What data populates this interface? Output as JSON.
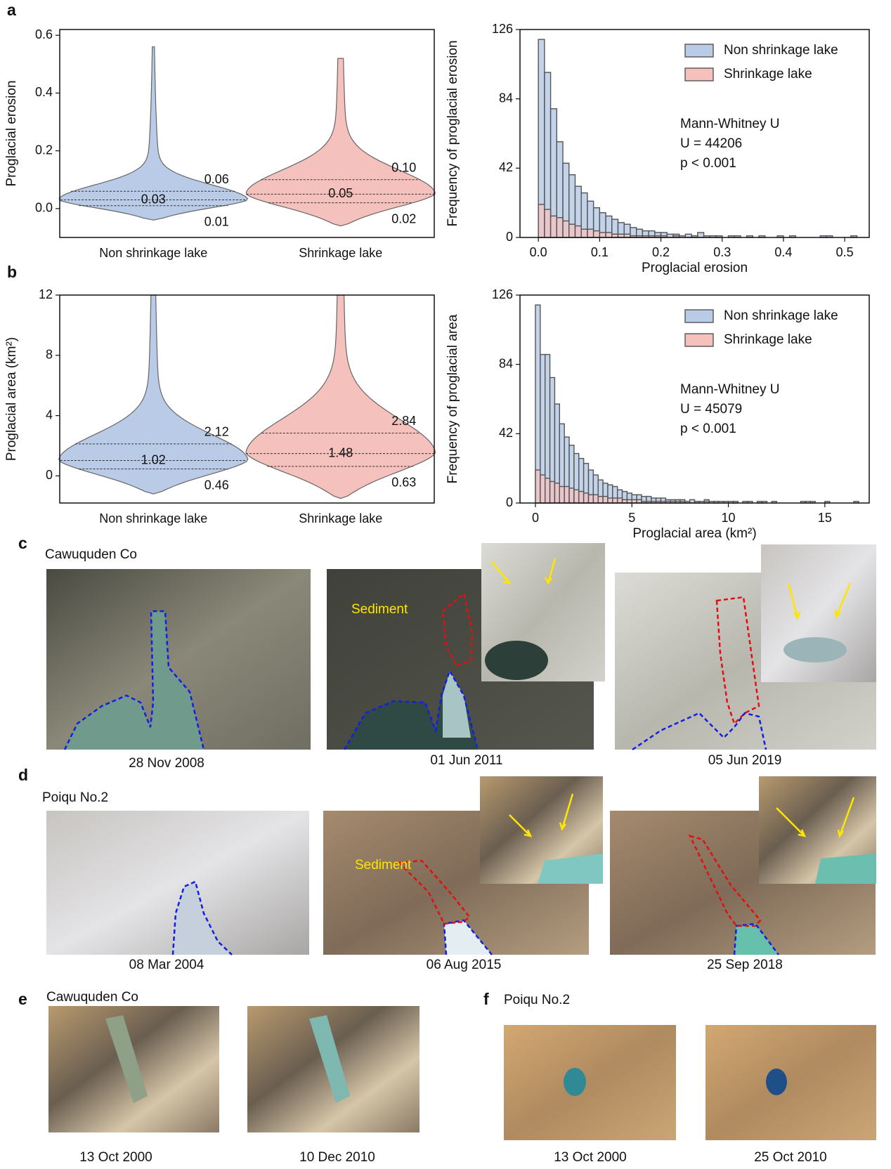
{
  "chart_data": [
    {
      "type": "violin",
      "ylabel": "Proglacial erosion",
      "categories": [
        "Non shrinkage lake",
        "Shrinkage lake"
      ],
      "colors": [
        "#b9cbe6",
        "#f5c1bd"
      ],
      "min": [
        -0.04,
        -0.06
      ],
      "max": [
        0.56,
        0.52
      ],
      "q1": [
        0.01,
        0.02
      ],
      "median": [
        0.03,
        0.05
      ],
      "q3": [
        0.06,
        0.1
      ],
      "q3_labels": [
        "0.06",
        "0.10"
      ],
      "ylim": [
        -0.1,
        0.62
      ],
      "yticks": [
        {
          "value": 0,
          "label": "0.0"
        },
        0.2,
        0.4,
        0.6
      ]
    },
    {
      "type": "histogram",
      "xlabel": "Proglacial erosion",
      "ylabel": "Frequency of proglacial erosion",
      "bins": [
        0,
        0.01,
        0.02,
        0.03,
        0.04,
        0.05,
        0.06,
        0.07,
        0.08,
        0.09,
        0.1,
        0.11,
        0.12,
        0.13,
        0.14,
        0.15,
        0.16,
        0.17,
        0.18,
        0.19,
        0.2,
        0.21,
        0.22,
        0.23,
        0.24,
        0.25,
        0.26,
        0.27,
        0.28,
        0.29,
        0.3,
        0.31,
        0.32,
        0.33,
        0.34,
        0.35,
        0.36,
        0.37,
        0.38,
        0.39,
        0.4,
        0.41,
        0.42,
        0.43,
        0.44,
        0.45,
        0.46,
        0.47,
        0.48,
        0.49,
        0.5,
        0.51,
        0.52
      ],
      "series": [
        {
          "name": "Non shrinkage lake",
          "color": "#b9cbe6",
          "values": [
            120,
            100,
            78,
            58,
            45,
            38,
            31,
            27,
            22,
            18,
            15,
            13,
            11,
            9,
            8,
            6,
            5,
            4,
            4,
            3,
            3,
            2,
            2,
            1,
            2,
            1,
            3,
            1,
            1,
            1,
            0,
            1,
            1,
            0,
            1,
            0,
            1,
            0,
            0,
            1,
            0,
            1,
            0,
            0,
            0,
            0,
            1,
            1,
            0,
            0,
            0,
            1
          ]
        },
        {
          "name": "Shrinkage lake",
          "color": "#f5c1bd",
          "values": [
            20,
            17,
            13,
            12,
            10,
            8,
            7,
            5,
            5,
            4,
            3,
            3,
            2,
            2,
            2,
            1,
            1,
            1,
            1,
            1,
            1,
            0,
            1,
            0,
            0,
            1,
            0,
            0,
            0,
            1,
            0,
            0,
            0,
            0,
            0,
            0,
            0,
            0,
            0,
            0,
            0,
            0,
            0,
            0,
            0,
            0,
            0,
            0,
            0,
            0,
            0,
            0
          ]
        }
      ],
      "xlim": [
        -0.03,
        0.54
      ],
      "xticks": [
        {
          "value": 0,
          "label": "0.0"
        },
        0.1,
        0.2,
        0.3,
        0.4,
        0.5
      ],
      "ylim": [
        0,
        126
      ],
      "yticks": [
        0,
        42,
        84,
        126
      ],
      "legend": "upper right",
      "annotations": [
        "Mann-Whitney U",
        "U = 44206",
        "p < 0.001"
      ]
    },
    {
      "type": "violin",
      "ylabel": "Proglacial area (km²)",
      "categories": [
        "Non shrinkage lake",
        "Shrinkage lake"
      ],
      "colors": [
        "#b9cbe6",
        "#f5c1bd"
      ],
      "min": [
        -1.2,
        -1.5
      ],
      "max": [
        12,
        12
      ],
      "q1": [
        0.46,
        0.63
      ],
      "median": [
        1.02,
        1.48
      ],
      "q3": [
        2.12,
        2.84
      ],
      "ylim": [
        -1.8,
        12
      ],
      "yticks": [
        0,
        4,
        8,
        12
      ]
    },
    {
      "type": "histogram",
      "xlabel": "Proglacial area (km²)",
      "ylabel": "Frequency of proglacial area",
      "bins": [
        0,
        0.25,
        0.5,
        0.75,
        1,
        1.25,
        1.5,
        1.75,
        2,
        2.25,
        2.5,
        2.75,
        3,
        3.25,
        3.5,
        3.75,
        4,
        4.25,
        4.5,
        4.75,
        5,
        5.25,
        5.5,
        5.75,
        6,
        6.25,
        6.5,
        6.75,
        7,
        7.25,
        7.5,
        7.75,
        8,
        8.25,
        8.5,
        8.75,
        9,
        9.25,
        9.5,
        9.75,
        10,
        10.25,
        10.5,
        10.75,
        11,
        11.25,
        11.5,
        11.75,
        12,
        12.25,
        12.5,
        12.75,
        13,
        13.25,
        13.5,
        13.75,
        14,
        14.25,
        14.5,
        14.75,
        15,
        15.25,
        15.5,
        15.75,
        16,
        16.25,
        16.5,
        16.75
      ],
      "series": [
        {
          "name": "Non shrinkage lake",
          "color": "#b9cbe6",
          "values": [
            120,
            90,
            90,
            76,
            60,
            48,
            40,
            35,
            30,
            27,
            24,
            20,
            17,
            14,
            12,
            11,
            10,
            8,
            7,
            6,
            5,
            5,
            4,
            4,
            3,
            3,
            3,
            2,
            2,
            2,
            2,
            1,
            2,
            1,
            1,
            2,
            1,
            1,
            1,
            1,
            1,
            1,
            0,
            1,
            1,
            0,
            1,
            1,
            0,
            1,
            0,
            0,
            0,
            0,
            0,
            1,
            0,
            1,
            0,
            0,
            1,
            0,
            0,
            0,
            0,
            0,
            1
          ]
        },
        {
          "name": "Shrinkage lake",
          "color": "#f5c1bd",
          "values": [
            20,
            17,
            15,
            13,
            12,
            10,
            10,
            9,
            8,
            7,
            6,
            5,
            5,
            4,
            4,
            3,
            3,
            3,
            2,
            2,
            2,
            2,
            1,
            1,
            1,
            1,
            1,
            1,
            1,
            1,
            1,
            1,
            0,
            1,
            0,
            1,
            0,
            1,
            0,
            0,
            0,
            1,
            0,
            0,
            0,
            0,
            1,
            0,
            0,
            0,
            0,
            0,
            0,
            0,
            0,
            0,
            1,
            0,
            0,
            0,
            0,
            0,
            0,
            0,
            0,
            0,
            0
          ]
        }
      ],
      "xlim": [
        -0.8,
        17.3
      ],
      "xticks": [
        0,
        5,
        10,
        15
      ],
      "ylim": [
        0,
        126
      ],
      "yticks": [
        0,
        42,
        84,
        126
      ],
      "legend": "upper right",
      "annotations": [
        "Mann-Whitney U",
        "U = 45079",
        "p < 0.001"
      ]
    }
  ],
  "panel_labels": [
    "a",
    "b",
    "c",
    "d",
    "e",
    "f"
  ],
  "photos": {
    "c": {
      "site": "Cawuquden Co",
      "dates": [
        "28 Nov 2008",
        "01 Jun 2011",
        "05 Jun 2019"
      ],
      "annotation": "Sediment"
    },
    "d": {
      "site": "Poiqu No.2",
      "dates": [
        "08 Mar 2004",
        "06 Aug 2015",
        "25 Sep 2018"
      ],
      "annotation": "Sediment"
    },
    "e": {
      "site": "Cawuquden Co",
      "dates": [
        "13 Oct 2000",
        "10 Dec 2010"
      ]
    },
    "f": {
      "site": "Poiqu No.2",
      "dates": [
        "13 Oct 2000",
        "25 Oct 2010"
      ]
    }
  }
}
